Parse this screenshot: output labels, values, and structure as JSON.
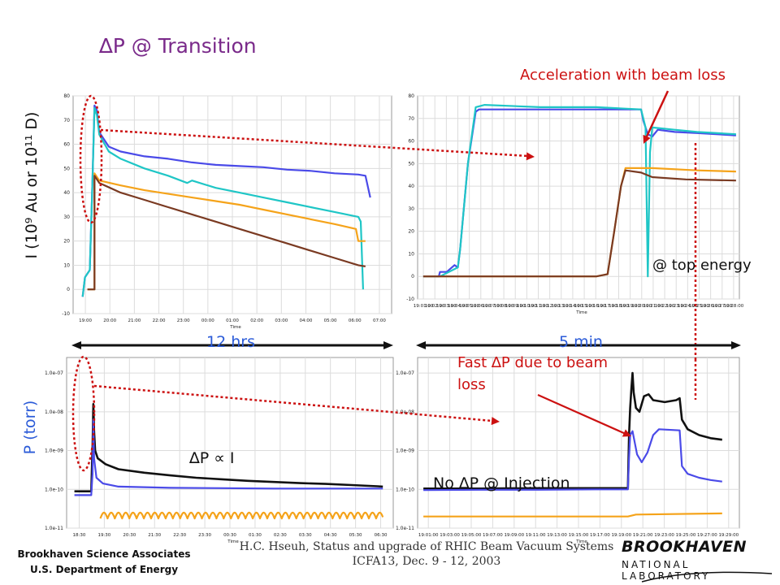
{
  "slide": {
    "title": "∆P @ Transition",
    "annotations": {
      "acceleration": "Acceleration with beam loss",
      "top_energy": "@ top energy",
      "fast_dp": "Fast ∆P due to beam loss",
      "no_dp_injection": "No ∆P @ Injection",
      "dp_prop": "∆P ∝ I",
      "span_12h": "12 hrs",
      "span_5m": "5 min"
    },
    "ylabel_current": "I (10⁹ Au or 10¹¹ D)",
    "ylabel_pressure": "P (torr)",
    "footer": {
      "left_line1": "Brookhaven Science Associates",
      "left_line2": "U.S. Department of Energy",
      "center_line1": "H.C. Hseuh, Status and upgrade of RHIC Beam Vacuum Systems",
      "center_line2": "ICFA13, Dec. 9 - 12, 2003",
      "logo_line1": "BROOKHAVEN",
      "logo_line2": "NATIONAL LABORATORY"
    },
    "colors": {
      "blue": "#4a4ae8",
      "cyan": "#1fc6c6",
      "orange": "#f5a31a",
      "brown": "#7a3a22",
      "black": "#111111",
      "annotation_red": "#cc1111",
      "label_blue": "#2b5bd8"
    }
  },
  "chart_data": [
    {
      "id": "current-12hr",
      "type": "line",
      "xlabel": "Time",
      "x_ticks": [
        "19:00",
        "20:00",
        "21:00",
        "22:00",
        "23:00",
        "00:00",
        "01:00",
        "02:00",
        "03:00",
        "04:00",
        "05:00",
        "06:00",
        "07:00"
      ],
      "y_ticks": [
        -10,
        0,
        10,
        20,
        30,
        40,
        50,
        60,
        70,
        80
      ],
      "ylim": [
        -10,
        80
      ],
      "series": [
        {
          "color_key": "blue",
          "points": [
            [
              -0.6,
              -3
            ],
            [
              -0.5,
              5
            ],
            [
              -0.3,
              8
            ],
            [
              -0.2,
              40
            ],
            [
              -0.1,
              76
            ],
            [
              0.0,
              74
            ],
            [
              0.1,
              65
            ],
            [
              0.5,
              59
            ],
            [
              1,
              57
            ],
            [
              2,
              55
            ],
            [
              3,
              54
            ],
            [
              4,
              52.5
            ],
            [
              5,
              51.5
            ],
            [
              6,
              51
            ],
            [
              7,
              50.5
            ],
            [
              8,
              49.5
            ],
            [
              9,
              49
            ],
            [
              10,
              48
            ],
            [
              11,
              47.5
            ],
            [
              11.3,
              47
            ],
            [
              11.5,
              38
            ]
          ]
        },
        {
          "color_key": "cyan",
          "points": [
            [
              -0.6,
              -3
            ],
            [
              -0.5,
              5
            ],
            [
              -0.3,
              8
            ],
            [
              -0.2,
              40
            ],
            [
              -0.1,
              75
            ],
            [
              0.0,
              72
            ],
            [
              0.1,
              64
            ],
            [
              0.5,
              57
            ],
            [
              1,
              54
            ],
            [
              2,
              50
            ],
            [
              3,
              47
            ],
            [
              3.8,
              44
            ],
            [
              4,
              45
            ],
            [
              5,
              42
            ],
            [
              6,
              40
            ],
            [
              7,
              38
            ],
            [
              8,
              36
            ],
            [
              9,
              34
            ],
            [
              10,
              32
            ],
            [
              11,
              30
            ],
            [
              11.1,
              28
            ],
            [
              11.2,
              0
            ]
          ]
        },
        {
          "color_key": "orange",
          "points": [
            [
              -0.4,
              0
            ],
            [
              -0.1,
              0
            ],
            [
              -0.1,
              48
            ],
            [
              0.1,
              45
            ],
            [
              1,
              43
            ],
            [
              2,
              41
            ],
            [
              3,
              39.5
            ],
            [
              4,
              38
            ],
            [
              5,
              36.5
            ],
            [
              6,
              35
            ],
            [
              7,
              33
            ],
            [
              8,
              31
            ],
            [
              9,
              29
            ],
            [
              10,
              27
            ],
            [
              10.9,
              25
            ],
            [
              11,
              20
            ],
            [
              11.3,
              20
            ]
          ]
        },
        {
          "color_key": "brown",
          "points": [
            [
              -0.4,
              0
            ],
            [
              -0.1,
              0
            ],
            [
              -0.1,
              47
            ],
            [
              0.1,
              44
            ],
            [
              1,
              40
            ],
            [
              2,
              37
            ],
            [
              3,
              34
            ],
            [
              4,
              31
            ],
            [
              5,
              28
            ],
            [
              6,
              25
            ],
            [
              7,
              22
            ],
            [
              8,
              19
            ],
            [
              9,
              16
            ],
            [
              10,
              13
            ],
            [
              11,
              10
            ],
            [
              11.3,
              9.5
            ]
          ]
        }
      ]
    },
    {
      "id": "current-5min",
      "type": "line",
      "xlabel": "Time",
      "x_ticks": [
        "19:01:00",
        "19:02:00",
        "19:03:00",
        "19:04:00",
        "19:05:00",
        "19:06:00",
        "19:07:00",
        "19:08:00",
        "19:09:00",
        "19:10:00",
        "19:11:00",
        "19:12:00",
        "19:13:00",
        "19:14:00",
        "19:15:00",
        "19:16:00",
        "19:17:00",
        "19:18:00",
        "19:19:00",
        "19:20:00",
        "19:21:00",
        "19:22:00",
        "19:23:00",
        "19:24:00",
        "19:25:00",
        "19:26:00",
        "19:27:00",
        "19:28:00"
      ],
      "y_ticks": [
        -10,
        0,
        10,
        20,
        30,
        40,
        50,
        60,
        70,
        80
      ],
      "ylim": [
        -10,
        80
      ],
      "series": [
        {
          "color_key": "blue",
          "points": [
            [
              -0.5,
              0
            ],
            [
              0.9,
              0
            ],
            [
              1,
              2
            ],
            [
              1.6,
              2
            ],
            [
              2.3,
              5
            ],
            [
              2.6,
              4
            ],
            [
              2.8,
              12
            ],
            [
              3.5,
              50
            ],
            [
              4.2,
              73
            ],
            [
              4.5,
              74
            ],
            [
              5,
              74
            ],
            [
              10,
              74
            ],
            [
              15,
              74
            ],
            [
              19,
              74
            ],
            [
              19.2,
              69
            ],
            [
              19.6,
              63
            ],
            [
              20,
              62
            ],
            [
              20.5,
              65
            ],
            [
              22,
              64
            ],
            [
              24,
              63.5
            ],
            [
              27.5,
              62.5
            ]
          ]
        },
        {
          "color_key": "cyan",
          "points": [
            [
              -0.5,
              0
            ],
            [
              1,
              0
            ],
            [
              1.8,
              2
            ],
            [
              2.6,
              4
            ],
            [
              2.8,
              12
            ],
            [
              3.5,
              50
            ],
            [
              4.2,
              75
            ],
            [
              5,
              76
            ],
            [
              10,
              75
            ],
            [
              15,
              75
            ],
            [
              19,
              74
            ],
            [
              19.2,
              70
            ],
            [
              19.4,
              66
            ],
            [
              19.6,
              0
            ],
            [
              19.8,
              55
            ],
            [
              20,
              66
            ],
            [
              22,
              65
            ],
            [
              24,
              64
            ],
            [
              27.5,
              63
            ]
          ]
        },
        {
          "color_key": "orange",
          "points": [
            [
              -0.5,
              0
            ],
            [
              5,
              0
            ],
            [
              10,
              0
            ],
            [
              15,
              0
            ],
            [
              16,
              1
            ],
            [
              16.6,
              20
            ],
            [
              17.2,
              40
            ],
            [
              17.6,
              48
            ],
            [
              20,
              48
            ],
            [
              24,
              47
            ],
            [
              27.5,
              46.5
            ]
          ]
        },
        {
          "color_key": "brown",
          "points": [
            [
              -0.5,
              0
            ],
            [
              5,
              0
            ],
            [
              10,
              0
            ],
            [
              15,
              0
            ],
            [
              16,
              1
            ],
            [
              16.6,
              20
            ],
            [
              17.2,
              40
            ],
            [
              17.6,
              47
            ],
            [
              19,
              46
            ],
            [
              20,
              44
            ],
            [
              23,
              43
            ],
            [
              27.5,
              42.5
            ]
          ]
        }
      ]
    },
    {
      "id": "pressure-12hr",
      "type": "line",
      "xlabel": "Time",
      "x_ticks": [
        "18:30",
        "19:30",
        "20:30",
        "21:30",
        "22:30",
        "23:30",
        "00:30",
        "01:30",
        "02:30",
        "03:30",
        "04:30",
        "05:30",
        "06:30"
      ],
      "y_ticks": [
        "1.0e-11",
        "1.0e-10",
        "1.0e-09",
        "1.0e-08",
        "1.0e-07"
      ],
      "y_scale": "log",
      "ylim_exp": [
        -11,
        -6.6
      ],
      "series": [
        {
          "color_key": "black",
          "points": [
            [
              0.3,
              -10.05
            ],
            [
              0.95,
              -10.05
            ],
            [
              1,
              -8.9
            ],
            [
              1.03,
              -7.8
            ],
            [
              1.06,
              -8.5
            ],
            [
              1.1,
              -9.0
            ],
            [
              1.2,
              -9.2
            ],
            [
              1.5,
              -9.35
            ],
            [
              2,
              -9.48
            ],
            [
              3,
              -9.57
            ],
            [
              4,
              -9.64
            ],
            [
              5,
              -9.7
            ],
            [
              6,
              -9.74
            ],
            [
              7,
              -9.78
            ],
            [
              8,
              -9.81
            ],
            [
              9,
              -9.84
            ],
            [
              10,
              -9.86
            ],
            [
              11,
              -9.89
            ],
            [
              12,
              -9.92
            ],
            [
              12.2,
              -9.93
            ]
          ]
        },
        {
          "color_key": "blue",
          "points": [
            [
              0.3,
              -10.15
            ],
            [
              0.95,
              -10.15
            ],
            [
              1,
              -9.6
            ],
            [
              1.03,
              -8.2
            ],
            [
              1.06,
              -9.2
            ],
            [
              1.15,
              -9.7
            ],
            [
              1.4,
              -9.85
            ],
            [
              2,
              -9.93
            ],
            [
              4,
              -9.96
            ],
            [
              6,
              -9.97
            ],
            [
              8,
              -9.98
            ],
            [
              10,
              -9.98
            ],
            [
              12.2,
              -9.98
            ]
          ]
        },
        {
          "color_key": "orange",
          "waveform": true,
          "base": -10.75,
          "amp": 0.15,
          "start": 1.3,
          "end": 12.2,
          "period": 0.28
        }
      ]
    },
    {
      "id": "pressure-5min",
      "type": "line",
      "xlabel": "Time",
      "x_ticks": [
        "19:01:00",
        "19:03:00",
        "19:05:00",
        "19:07:00",
        "19:09:00",
        "19:11:00",
        "19:13:00",
        "19:15:00",
        "19:17:00",
        "19:19:00",
        "19:21:00",
        "19:23:00",
        "19:25:00",
        "19:27:00",
        "19:29:00"
      ],
      "y_ticks": [
        "1.0e-11",
        "1.0e-10",
        "1.0e-09",
        "1.0e-08",
        "1.0e-07"
      ],
      "y_scale": "log",
      "ylim_exp": [
        -11,
        -6.6
      ],
      "series": [
        {
          "color_key": "black",
          "points": [
            [
              0,
              -9.98
            ],
            [
              5,
              -9.98
            ],
            [
              10,
              -9.97
            ],
            [
              15,
              -9.97
            ],
            [
              17.8,
              -9.97
            ],
            [
              17.9,
              -8.6
            ],
            [
              18.0,
              -7.9
            ],
            [
              18.1,
              -7.4
            ],
            [
              18.2,
              -7.0
            ],
            [
              18.3,
              -7.5
            ],
            [
              18.5,
              -7.9
            ],
            [
              18.8,
              -8.0
            ],
            [
              19.2,
              -7.6
            ],
            [
              19.6,
              -7.55
            ],
            [
              20,
              -7.7
            ],
            [
              21,
              -7.75
            ],
            [
              22,
              -7.7
            ],
            [
              22.3,
              -7.65
            ],
            [
              22.5,
              -8.2
            ],
            [
              23,
              -8.45
            ],
            [
              24,
              -8.6
            ],
            [
              25,
              -8.68
            ],
            [
              26,
              -8.72
            ]
          ]
        },
        {
          "color_key": "blue",
          "points": [
            [
              0,
              -10.02
            ],
            [
              5,
              -10.01
            ],
            [
              10,
              -10.01
            ],
            [
              15,
              -10.0
            ],
            [
              17.8,
              -10.0
            ],
            [
              17.9,
              -9.2
            ],
            [
              18.0,
              -8.6
            ],
            [
              18.2,
              -8.5
            ],
            [
              18.6,
              -9.1
            ],
            [
              19,
              -9.3
            ],
            [
              19.5,
              -9.05
            ],
            [
              20.0,
              -8.6
            ],
            [
              20.5,
              -8.45
            ],
            [
              22.3,
              -8.48
            ],
            [
              22.5,
              -9.4
            ],
            [
              23,
              -9.6
            ],
            [
              24,
              -9.7
            ],
            [
              25,
              -9.76
            ],
            [
              26,
              -9.8
            ]
          ]
        },
        {
          "color_key": "orange",
          "points": [
            [
              0,
              -10.7
            ],
            [
              10,
              -10.7
            ],
            [
              17.8,
              -10.7
            ],
            [
              18.5,
              -10.65
            ],
            [
              26,
              -10.62
            ]
          ]
        }
      ]
    }
  ]
}
